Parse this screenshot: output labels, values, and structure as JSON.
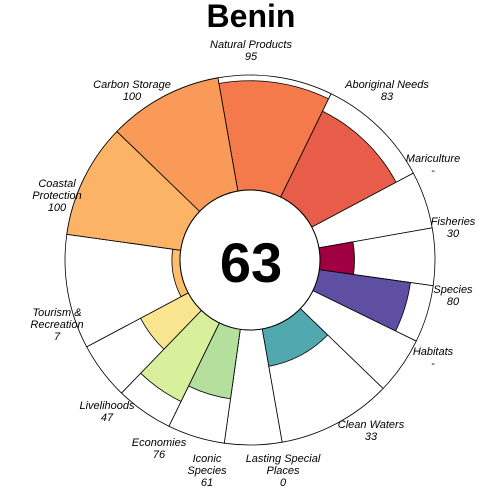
{
  "chart_data": {
    "type": "flower",
    "title": "Benin",
    "score": "63",
    "max_value": 100,
    "petals": [
      {
        "label": "Natural Products",
        "value": 95,
        "display": "95",
        "weight": 1,
        "color": "#f57a4b"
      },
      {
        "label": "Aboriginal Needs",
        "value": 83,
        "display": "83",
        "weight": 1,
        "color": "#e85c4a"
      },
      {
        "label": "Mariculture",
        "value": null,
        "display": "-",
        "weight": 0.5,
        "color": "#ffffff"
      },
      {
        "label": "Fisheries",
        "value": 30,
        "display": "30",
        "weight": 0.5,
        "color": "#a00042"
      },
      {
        "label": "Species",
        "value": 80,
        "display": "80",
        "weight": 0.5,
        "color": "#5e4fa2"
      },
      {
        "label": "Habitats",
        "value": null,
        "display": "-",
        "weight": 0.5,
        "color": "#ffffff"
      },
      {
        "label": "Clean Waters",
        "value": 33,
        "display": "33",
        "weight": 1,
        "color": "#51a8ae"
      },
      {
        "label": "Lasting Special Places",
        "value": 0,
        "display": "0",
        "weight": 0.5,
        "color": "#ffffff"
      },
      {
        "label": "Iconic Species",
        "value": 61,
        "display": "61",
        "weight": 0.5,
        "color": "#b4df9c"
      },
      {
        "label": "Economies",
        "value": 76,
        "display": "76",
        "weight": 0.5,
        "color": "#d8ef9b"
      },
      {
        "label": "Livelihoods",
        "value": 47,
        "display": "47",
        "weight": 0.5,
        "color": "#f9e48f"
      },
      {
        "label": "Tourism & Recreation",
        "value": 7,
        "display": "7",
        "weight": 1,
        "color": "#fdbe6e"
      },
      {
        "label": "Coastal Protection",
        "value": 100,
        "display": "100",
        "weight": 1,
        "color": "#fdb366"
      },
      {
        "label": "Carbon Storage",
        "value": 100,
        "display": "100",
        "weight": 1,
        "color": "#fa9a58"
      }
    ]
  }
}
